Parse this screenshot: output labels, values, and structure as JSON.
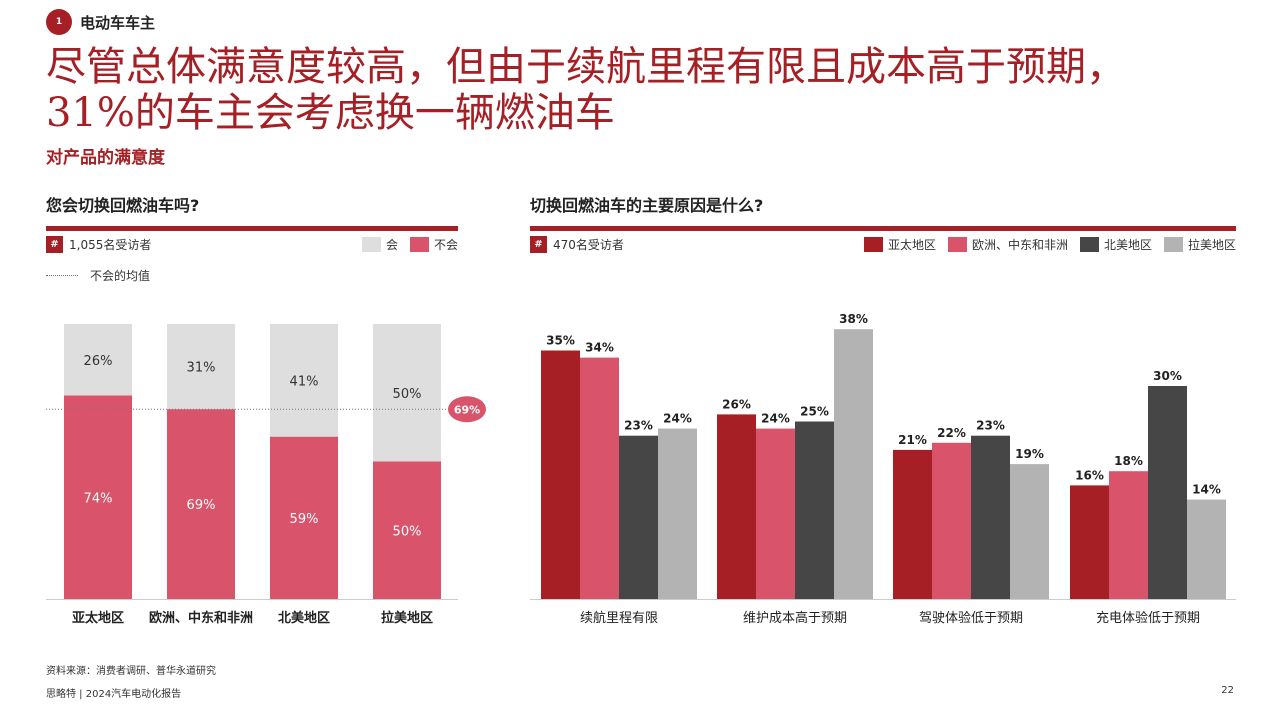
{
  "section": {
    "number": "1",
    "label": "电动车车主"
  },
  "headline": {
    "line1": "尽管总体满意度较高，但由于续航里程有限且成本高于预期，",
    "line2": "31%的车主会考虑换一辆燃油车"
  },
  "subhead": "对产品的满意度",
  "colors": {
    "brand": "#a51f24",
    "pink": "#d9536b",
    "dark": "#464646",
    "gray": "#b3b3b3",
    "light_gray": "#dedede"
  },
  "left_panel": {
    "title": "您会切换回燃油车吗?",
    "respondents_icon": "#",
    "respondents": "1,055名受访者",
    "legend": [
      {
        "label": "会",
        "color": "#dedede"
      },
      {
        "label": "不会",
        "color": "#d9536b"
      }
    ],
    "avg_legend": "不会的均值"
  },
  "right_panel": {
    "title": "切换回燃油车的主要原因是什么?",
    "respondents_icon": "#",
    "respondents": "470名受访者",
    "legend": [
      {
        "label": "亚太地区",
        "color": "#a51f24"
      },
      {
        "label": "欧洲、中东和非洲",
        "color": "#d9536b"
      },
      {
        "label": "北美地区",
        "color": "#464646"
      },
      {
        "label": "拉美地区",
        "color": "#b3b3b3"
      }
    ]
  },
  "chart_data": [
    {
      "type": "bar",
      "stacked": true,
      "title": "您会切换回燃油车吗?",
      "categories": [
        "亚太地区",
        "欧洲、中东和非洲",
        "北美地区",
        "拉美地区"
      ],
      "series": [
        {
          "name": "不会",
          "values": [
            74,
            69,
            59,
            50
          ],
          "labels": [
            "74%",
            "69%",
            "59%",
            "50%"
          ],
          "color": "#d9536b"
        },
        {
          "name": "会",
          "values": [
            26,
            31,
            41,
            50
          ],
          "labels": [
            "26%",
            "31%",
            "41%",
            "50%"
          ],
          "color": "#dedede"
        }
      ],
      "reference_line": {
        "name": "不会的均值",
        "value": 69,
        "label": "69%"
      },
      "ylim": [
        0,
        100
      ]
    },
    {
      "type": "bar",
      "title": "切换回燃油车的主要原因是什么?",
      "categories": [
        "续航里程有限",
        "维护成本高于预期",
        "驾驶体验低于预期",
        "充电体验低于预期"
      ],
      "series": [
        {
          "name": "亚太地区",
          "values": [
            35,
            26,
            21,
            16
          ],
          "labels": [
            "35%",
            "26%",
            "21%",
            "16%"
          ],
          "color": "#a51f24"
        },
        {
          "name": "欧洲、中东和非洲",
          "values": [
            34,
            24,
            22,
            18
          ],
          "labels": [
            "34%",
            "24%",
            "22%",
            "18%"
          ],
          "color": "#d9536b"
        },
        {
          "name": "北美地区",
          "values": [
            23,
            25,
            23,
            30
          ],
          "labels": [
            "23%",
            "25%",
            "23%",
            "30%"
          ],
          "color": "#464646"
        },
        {
          "name": "拉美地区",
          "values": [
            24,
            38,
            19,
            14
          ],
          "labels": [
            "24%",
            "38%",
            "19%",
            "14%"
          ],
          "color": "#b3b3b3"
        }
      ],
      "ylim": [
        0,
        40
      ]
    }
  ],
  "footer": {
    "source": "资料来源：消费者调研、普华永道研究",
    "brand": "思略特 | 2024汽车电动化报告",
    "page": "22"
  }
}
